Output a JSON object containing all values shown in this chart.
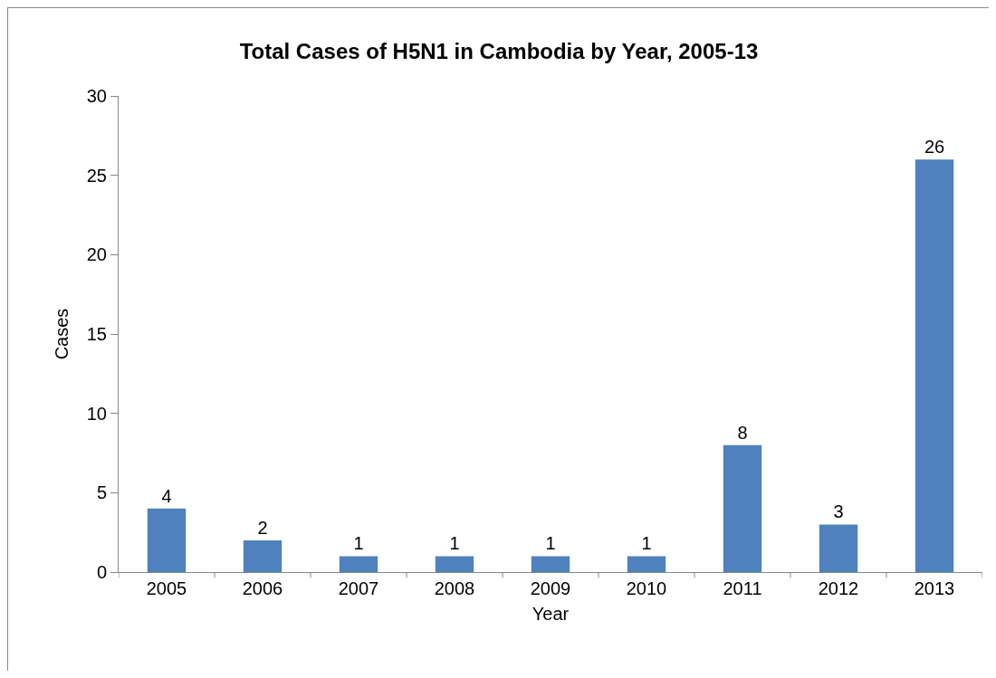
{
  "chart_data": {
    "type": "bar",
    "title": "Total Cases of H5N1 in Cambodia by Year, 2005-13",
    "xlabel": "Year",
    "ylabel": "Cases",
    "categories": [
      "2005",
      "2006",
      "2007",
      "2008",
      "2009",
      "2010",
      "2011",
      "2012",
      "2013"
    ],
    "values": [
      4,
      2,
      1,
      1,
      1,
      1,
      8,
      3,
      26
    ],
    "color": "#4f81bd",
    "ylim": [
      0,
      30
    ],
    "yticks": [
      0,
      5,
      10,
      15,
      20,
      25,
      30
    ],
    "grid": false,
    "data_labels": true
  }
}
